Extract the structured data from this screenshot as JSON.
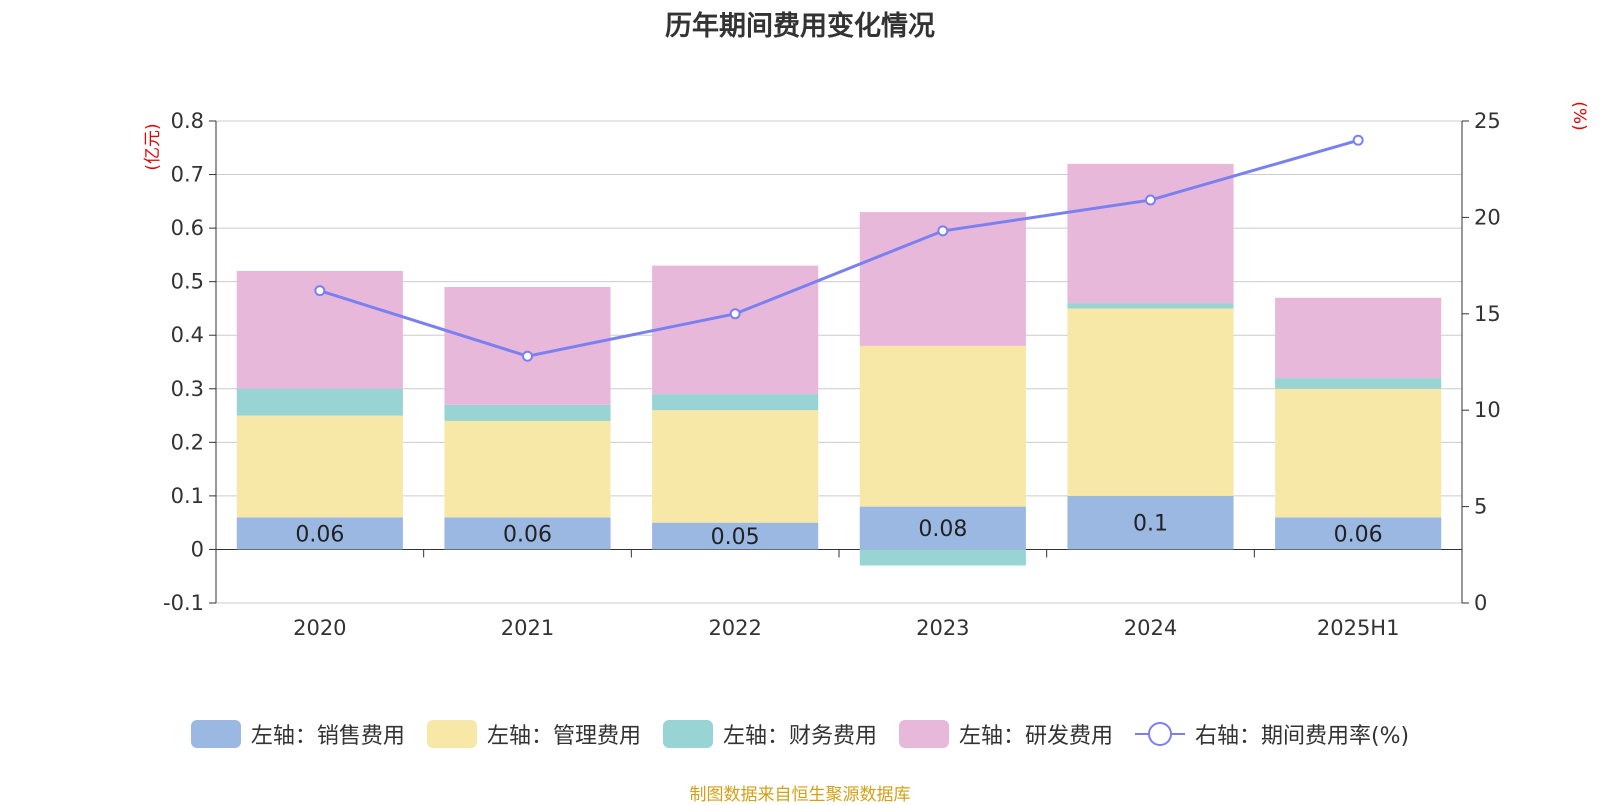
{
  "chart_data": {
    "type": "bar",
    "title": "历年期间费用变化情况",
    "categories": [
      "2020",
      "2021",
      "2022",
      "2023",
      "2024",
      "2025H1"
    ],
    "left_axis": {
      "unit_label": "(亿元)",
      "ylim": [
        -0.1,
        0.8
      ],
      "ticks": [
        -0.1,
        0,
        0.1,
        0.2,
        0.3,
        0.4,
        0.5,
        0.6,
        0.7,
        0.8
      ]
    },
    "right_axis": {
      "unit_label": "(%)",
      "ylim": [
        0,
        25
      ],
      "ticks": [
        0,
        5,
        10,
        15,
        20,
        25
      ]
    },
    "series": [
      {
        "name": "左轴：销售费用",
        "type": "bar",
        "axis": "left",
        "color": "#9bb8e3",
        "values": [
          0.06,
          0.06,
          0.05,
          0.08,
          0.1,
          0.06
        ],
        "labels": [
          "0.06",
          "0.06",
          "0.05",
          "0.08",
          "0.1",
          "0.06"
        ]
      },
      {
        "name": "左轴：管理费用",
        "type": "bar",
        "axis": "left",
        "color": "#f8e8a8",
        "values": [
          0.19,
          0.18,
          0.21,
          0.3,
          0.35,
          0.24
        ]
      },
      {
        "name": "左轴：财务费用",
        "type": "bar",
        "axis": "left",
        "color": "#98d4d4",
        "values": [
          0.05,
          0.03,
          0.03,
          -0.03,
          0.01,
          0.02
        ]
      },
      {
        "name": "左轴：研发费用",
        "type": "bar",
        "axis": "left",
        "color": "#e8b8da",
        "values": [
          0.22,
          0.22,
          0.24,
          0.25,
          0.26,
          0.15
        ]
      },
      {
        "name": "右轴：期间费用率(%)",
        "type": "line",
        "axis": "right",
        "color": "#7b80f0",
        "values": [
          16.2,
          12.8,
          15.0,
          19.3,
          20.9,
          24.0
        ]
      }
    ],
    "grid": true,
    "legend_position": "bottom"
  },
  "source_note": "制图数据来自恒生聚源数据库"
}
